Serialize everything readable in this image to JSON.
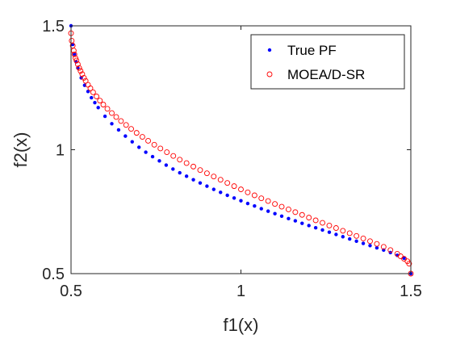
{
  "chart_data": {
    "type": "scatter",
    "xlabel": "f1(x)",
    "ylabel": "f2(x)",
    "xlim": [
      0.5,
      1.5
    ],
    "ylim": [
      0.5,
      1.5
    ],
    "xticks": [
      "0.5",
      "1",
      "1.5"
    ],
    "yticks": [
      "0.5",
      "1",
      "1.5"
    ],
    "grid": false,
    "box": true,
    "legend_position": "top-right",
    "series": [
      {
        "name": "True PF",
        "marker": "dot",
        "color": "#0000ff",
        "x": [
          0.5,
          0.505,
          0.51,
          0.515,
          0.52,
          0.53,
          0.54,
          0.55,
          0.56,
          0.57,
          0.58,
          0.6,
          0.62,
          0.64,
          0.66,
          0.68,
          0.7,
          0.72,
          0.74,
          0.76,
          0.78,
          0.8,
          0.82,
          0.84,
          0.86,
          0.88,
          0.9,
          0.92,
          0.94,
          0.96,
          0.98,
          1.0,
          1.02,
          1.04,
          1.06,
          1.08,
          1.1,
          1.12,
          1.14,
          1.16,
          1.18,
          1.2,
          1.22,
          1.24,
          1.26,
          1.28,
          1.3,
          1.32,
          1.34,
          1.36,
          1.38,
          1.4,
          1.42,
          1.44,
          1.46,
          1.48,
          1.5
        ],
        "y": [
          1.5,
          1.425,
          1.385,
          1.355,
          1.33,
          1.29,
          1.26,
          1.235,
          1.21,
          1.19,
          1.17,
          1.135,
          1.105,
          1.08,
          1.055,
          1.032,
          1.01,
          0.99,
          0.972,
          0.955,
          0.938,
          0.922,
          0.907,
          0.893,
          0.879,
          0.866,
          0.853,
          0.84,
          0.828,
          0.816,
          0.805,
          0.794,
          0.783,
          0.773,
          0.762,
          0.752,
          0.742,
          0.732,
          0.722,
          0.713,
          0.703,
          0.694,
          0.685,
          0.676,
          0.667,
          0.658,
          0.649,
          0.64,
          0.631,
          0.622,
          0.613,
          0.604,
          0.595,
          0.585,
          0.574,
          0.562,
          0.5
        ]
      },
      {
        "name": "MOEA/D-SR",
        "marker": "open-circle",
        "color": "#ff0000",
        "x": [
          0.5,
          0.502,
          0.505,
          0.508,
          0.51,
          0.513,
          0.516,
          0.52,
          0.524,
          0.528,
          0.533,
          0.538,
          0.543,
          0.55,
          0.557,
          0.565,
          0.575,
          0.585,
          0.595,
          0.607,
          0.62,
          0.633,
          0.647,
          0.662,
          0.677,
          0.693,
          0.71,
          0.727,
          0.745,
          0.763,
          0.782,
          0.801,
          0.82,
          0.84,
          0.86,
          0.88,
          0.9,
          0.92,
          0.94,
          0.96,
          0.98,
          1.0,
          1.02,
          1.04,
          1.06,
          1.08,
          1.1,
          1.12,
          1.14,
          1.16,
          1.18,
          1.2,
          1.22,
          1.24,
          1.26,
          1.28,
          1.3,
          1.32,
          1.34,
          1.36,
          1.38,
          1.4,
          1.42,
          1.44,
          1.46,
          1.47,
          1.48,
          1.49,
          1.495,
          1.5
        ],
        "y": [
          1.47,
          1.44,
          1.42,
          1.4,
          1.385,
          1.37,
          1.36,
          1.345,
          1.33,
          1.318,
          1.305,
          1.29,
          1.278,
          1.262,
          1.248,
          1.232,
          1.215,
          1.198,
          1.182,
          1.165,
          1.148,
          1.132,
          1.116,
          1.1,
          1.084,
          1.068,
          1.052,
          1.036,
          1.02,
          1.005,
          0.99,
          0.975,
          0.96,
          0.946,
          0.932,
          0.918,
          0.905,
          0.892,
          0.879,
          0.866,
          0.853,
          0.84,
          0.828,
          0.816,
          0.804,
          0.793,
          0.781,
          0.77,
          0.759,
          0.748,
          0.737,
          0.726,
          0.715,
          0.705,
          0.694,
          0.684,
          0.673,
          0.663,
          0.652,
          0.642,
          0.631,
          0.62,
          0.608,
          0.595,
          0.58,
          0.57,
          0.56,
          0.55,
          0.54,
          0.5
        ]
      }
    ]
  }
}
